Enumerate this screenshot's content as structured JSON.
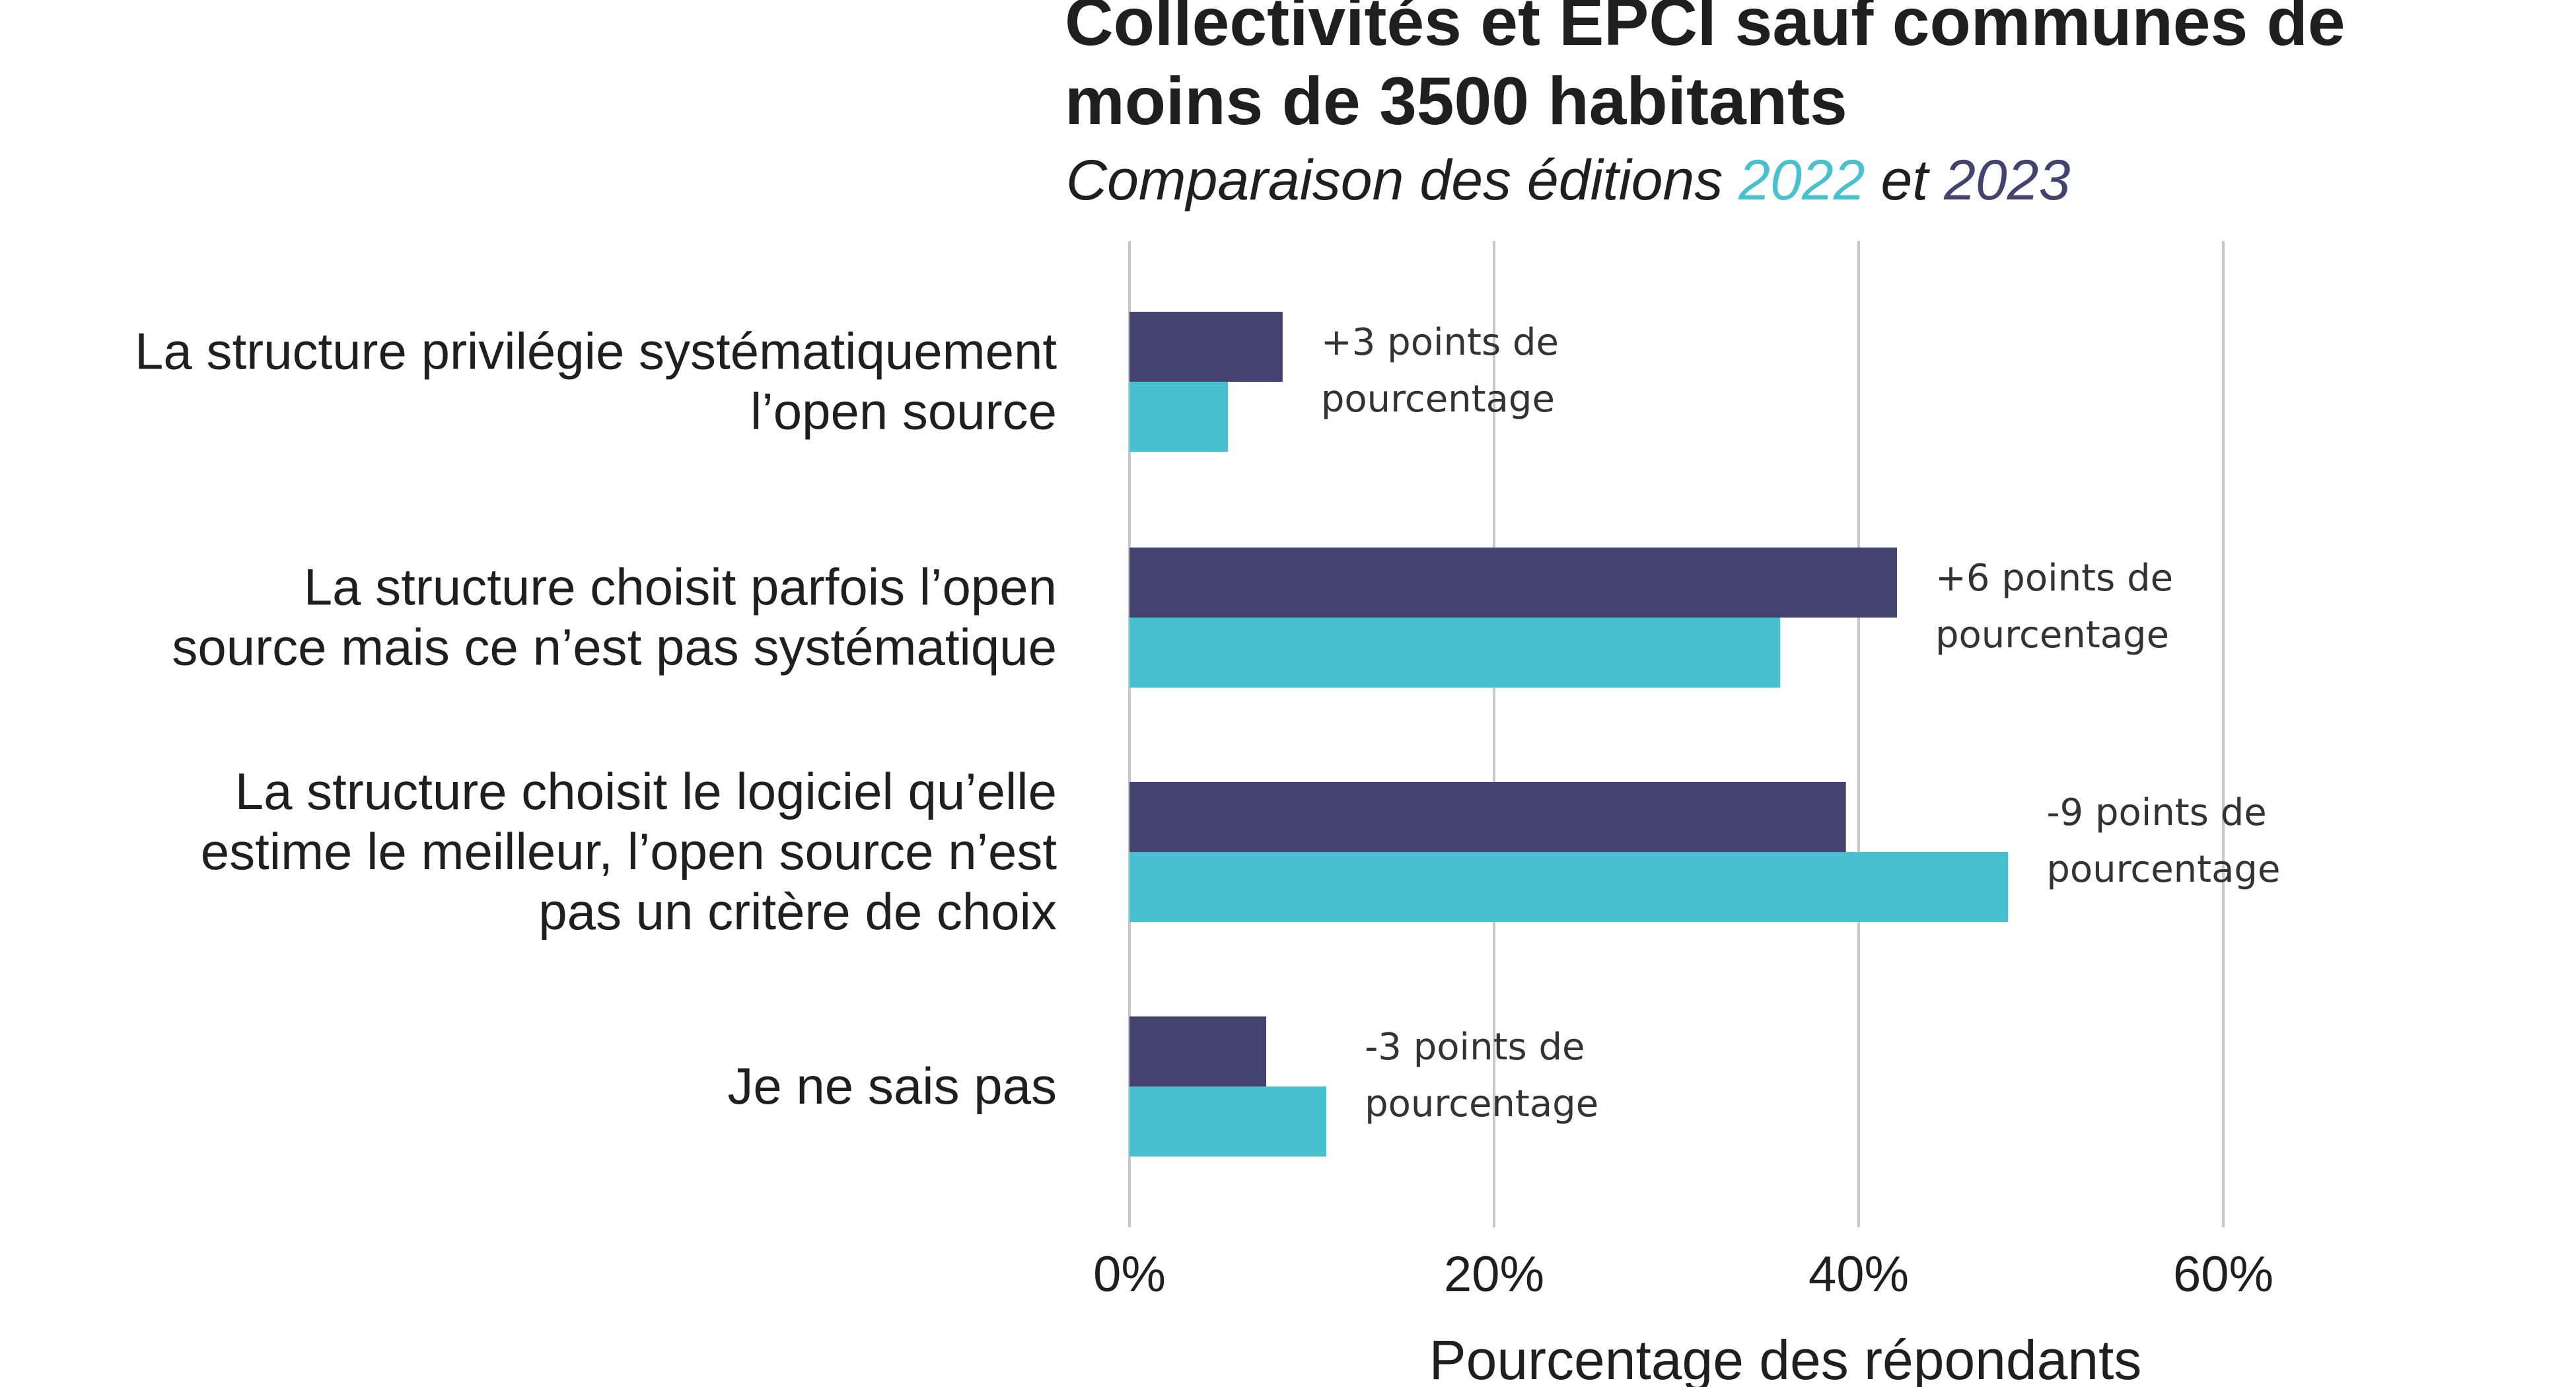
{
  "title_lines": [
    "Collectivités et EPCI sauf communes de",
    "moins de 3500 habitants"
  ],
  "subtitle": {
    "prefix": "Comparaison des éditions ",
    "year_a": "2022",
    "middle": " et ",
    "year_b": "2023"
  },
  "colors": {
    "2022": "#47c1cf",
    "2023": "#444370",
    "grid": "#c8c8c8",
    "text": "#1f1f1f"
  },
  "chart_data": {
    "type": "bar",
    "orientation": "horizontal",
    "categories": [
      [
        "La structure privilégie systématiquement",
        "l’open source"
      ],
      [
        "La structure choisit parfois l’open",
        "source mais ce n’est pas systématique"
      ],
      [
        "La structure choisit le logiciel qu’elle",
        "estime le meilleur, l’open source n’est",
        "pas un critère de choix"
      ],
      [
        "Je ne sais pas"
      ]
    ],
    "series": [
      {
        "name": "2023",
        "color": "#444370",
        "values": [
          8.4,
          42.1,
          39.3,
          7.5
        ]
      },
      {
        "name": "2022",
        "color": "#47c1cf",
        "values": [
          5.4,
          35.7,
          48.2,
          10.8
        ]
      }
    ],
    "annotations": [
      [
        "+3 points de",
        "pourcentage"
      ],
      [
        "+6 points de",
        "pourcentage"
      ],
      [
        "-9 points de",
        "pourcentage"
      ],
      [
        "-3 points de",
        "pourcentage"
      ]
    ],
    "xlim": [
      0,
      68
    ],
    "xticks": [
      0,
      20,
      40,
      60
    ],
    "xtick_labels": [
      "0%",
      "20%",
      "40%",
      "60%"
    ],
    "xlabel": "Pourcentage des répondants",
    "ylabel": "",
    "grid": true
  }
}
